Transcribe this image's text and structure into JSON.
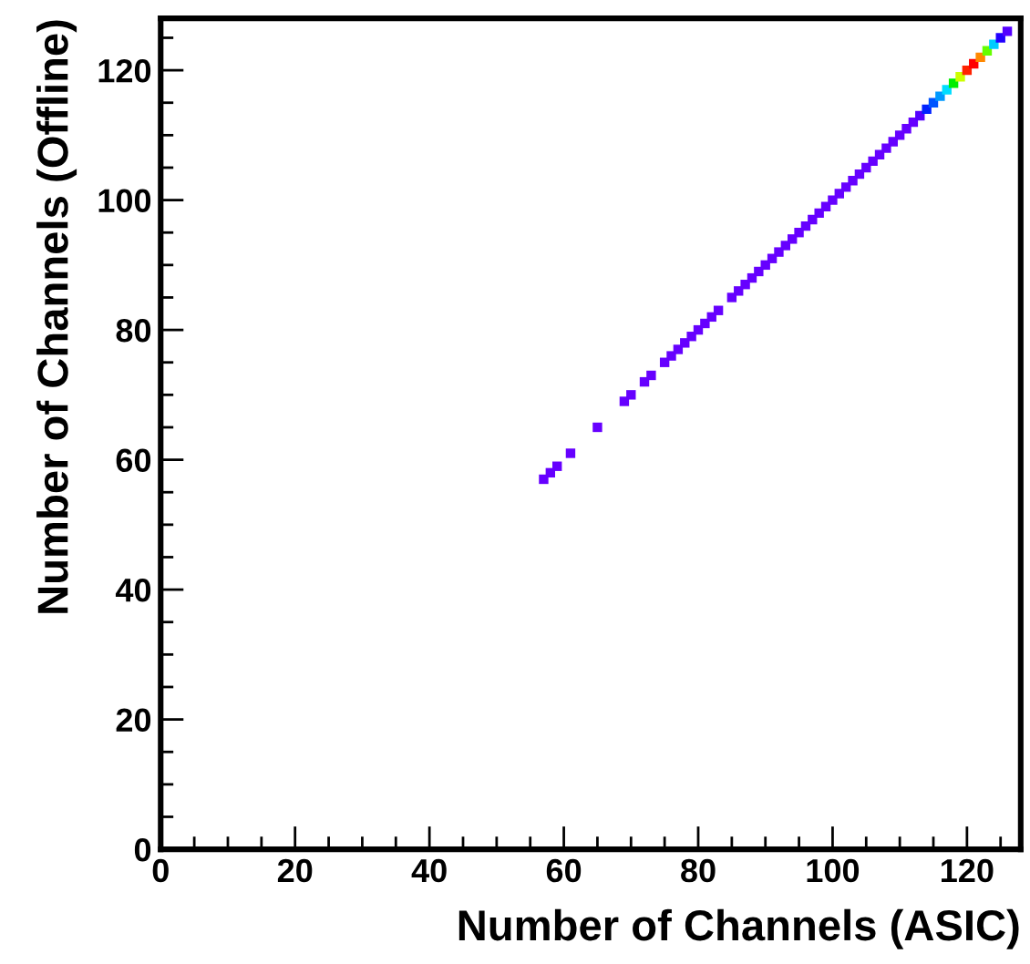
{
  "chart_data": {
    "type": "scatter",
    "xlabel": "Number of Channels (ASIC)",
    "ylabel": "Number of Channels (Offline)",
    "marker": "square",
    "grid": false,
    "legend": false,
    "xlim": [
      0,
      128
    ],
    "ylim": [
      0,
      128
    ],
    "xticks": [
      0,
      20,
      40,
      60,
      80,
      100,
      120
    ],
    "yticks": [
      0,
      20,
      40,
      60,
      80,
      100,
      120
    ],
    "x": [
      57,
      58,
      59,
      61,
      65,
      69,
      70,
      72,
      73,
      75,
      76,
      77,
      78,
      79,
      80,
      81,
      82,
      83,
      85,
      86,
      87,
      88,
      89,
      90,
      91,
      92,
      93,
      94,
      95,
      96,
      97,
      98,
      99,
      100,
      101,
      102,
      103,
      104,
      105,
      106,
      107,
      108,
      109,
      110,
      111,
      112,
      113,
      114,
      115,
      116,
      117,
      118,
      119,
      120,
      121,
      122,
      123,
      124,
      125,
      126
    ],
    "values": [
      57,
      58,
      59,
      61,
      65,
      69,
      70,
      72,
      73,
      75,
      76,
      77,
      78,
      79,
      80,
      81,
      82,
      83,
      85,
      86,
      87,
      88,
      89,
      90,
      91,
      92,
      93,
      94,
      95,
      96,
      97,
      98,
      99,
      100,
      101,
      102,
      103,
      104,
      105,
      106,
      107,
      108,
      109,
      110,
      111,
      112,
      113,
      114,
      115,
      116,
      117,
      118,
      119,
      120,
      121,
      122,
      123,
      124,
      125,
      126
    ],
    "colors": [
      "#6600ff",
      "#6600ff",
      "#6600ff",
      "#6600ff",
      "#6600ff",
      "#6600ff",
      "#6600ff",
      "#6600ff",
      "#6600ff",
      "#6600ff",
      "#6600ff",
      "#6600ff",
      "#6600ff",
      "#6600ff",
      "#6600ff",
      "#6600ff",
      "#6600ff",
      "#6600ff",
      "#6600ff",
      "#6600ff",
      "#6600ff",
      "#6600ff",
      "#6600ff",
      "#6600ff",
      "#6600ff",
      "#6600ff",
      "#6600ff",
      "#6600ff",
      "#6600ff",
      "#6600ff",
      "#6600ff",
      "#6600ff",
      "#6600ff",
      "#6600ff",
      "#6600ff",
      "#6600ff",
      "#6600ff",
      "#6600ff",
      "#6600ff",
      "#6600ff",
      "#6600ff",
      "#6600ff",
      "#6600ff",
      "#6600ff",
      "#6600ff",
      "#6600ff",
      "#5500ff",
      "#0022ff",
      "#0055ff",
      "#0099ff",
      "#00ddff",
      "#00ee00",
      "#ccff00",
      "#ff2200",
      "#ff0000",
      "#ff8800",
      "#66ff00",
      "#00ccff",
      "#2200ff",
      "#5500ff"
    ]
  }
}
